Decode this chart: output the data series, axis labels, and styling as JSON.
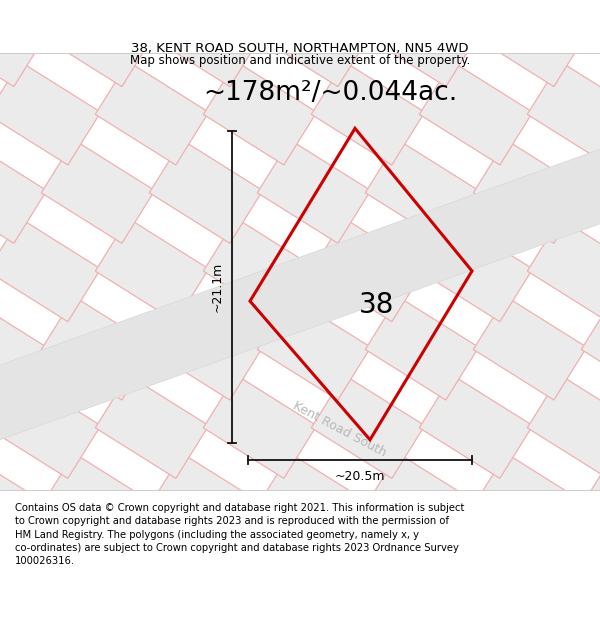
{
  "title_line1": "38, KENT ROAD SOUTH, NORTHAMPTON, NN5 4WD",
  "title_line2": "Map shows position and indicative extent of the property.",
  "area_text": "~178m²/~0.044ac.",
  "label_number": "38",
  "dim_width": "~20.5m",
  "dim_height": "~21.1m",
  "road_label": "Kent Road South",
  "footer_wrapped": "Contains OS data © Crown copyright and database right 2021. This information is subject\nto Crown copyright and database rights 2023 and is reproduced with the permission of\nHM Land Registry. The polygons (including the associated geometry, namely x, y\nco-ordinates) are subject to Crown copyright and database rights 2023 Ordnance Survey\n100026316.",
  "map_bg": "#f7f7f7",
  "tile_fill": "#ebebeb",
  "tile_stroke": "#e0c8c8",
  "road_fill": "#e8e8e8",
  "property_stroke": "#cc0000",
  "property_fill": "#f7f7f7",
  "dim_line_color": "#111111",
  "pink": "#f0b0b0",
  "title_fontsize": 9.5,
  "subtitle_fontsize": 8.5,
  "area_fontsize": 19,
  "number_fontsize": 20,
  "footer_fontsize": 7.2,
  "dim_fontsize": 9
}
